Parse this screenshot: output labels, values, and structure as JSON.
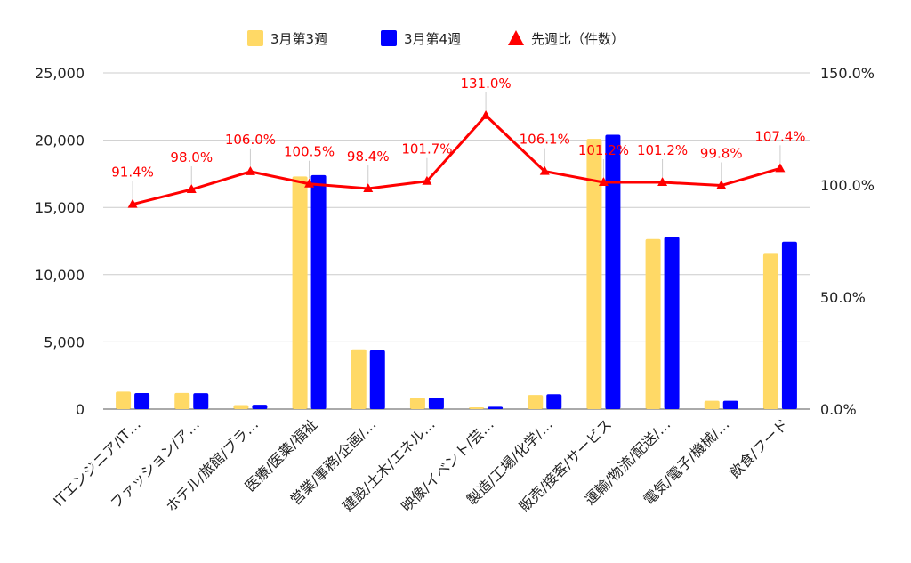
{
  "colors": {
    "series1": "#ffd966",
    "series2": "#0000ff",
    "ratio": "#ff0000",
    "grid": "#cccccc",
    "axis": "#555555"
  },
  "chart_data": {
    "type": "bar",
    "categories": [
      "ITエンジニア/IT…",
      "ファッション/ア…",
      "ホテル/旅館/ブラ…",
      "医療/医薬/福祉",
      "営業/事務/企画/…",
      "建設/土木/エネル…",
      "映像/イベント/芸…",
      "製造/工場/化学/…",
      "販売/接客/サービス",
      "運輸/物流/配送/…",
      "電気/電子/機械/…",
      "飲食/フード"
    ],
    "series": [
      {
        "name": "3月第3週",
        "type": "bar",
        "axis": "left",
        "values": [
          1300,
          1200,
          300,
          17300,
          4450,
          850,
          130,
          1050,
          20100,
          12650,
          620,
          11550
        ]
      },
      {
        "name": "3月第4週",
        "type": "bar",
        "axis": "left",
        "values": [
          1190,
          1180,
          320,
          17400,
          4380,
          860,
          170,
          1110,
          20400,
          12800,
          620,
          12450
        ]
      },
      {
        "name": "先週比（件数）",
        "type": "line",
        "axis": "right",
        "values": [
          91.4,
          98.0,
          106.0,
          100.5,
          98.4,
          101.7,
          131.0,
          106.1,
          101.2,
          101.2,
          99.8,
          107.4
        ],
        "labels": [
          "91.4%",
          "98.0%",
          "106.0%",
          "100.5%",
          "98.4%",
          "101.7%",
          "131.0%",
          "106.1%",
          "101.2%",
          "101.2%",
          "99.8%",
          "107.4%"
        ]
      }
    ],
    "y_left": {
      "range": [
        0,
        25000
      ],
      "ticks": [
        0,
        5000,
        10000,
        15000,
        20000,
        25000
      ],
      "tick_labels": [
        "0",
        "5,000",
        "10,000",
        "15,000",
        "20,000",
        "25,000"
      ]
    },
    "y_right": {
      "range": [
        0,
        150
      ],
      "ticks": [
        0,
        50,
        100,
        150
      ],
      "tick_labels": [
        "0.0%",
        "50.0%",
        "100.0%",
        "150.0%"
      ]
    },
    "grid": true,
    "legend_position": "top-center"
  }
}
